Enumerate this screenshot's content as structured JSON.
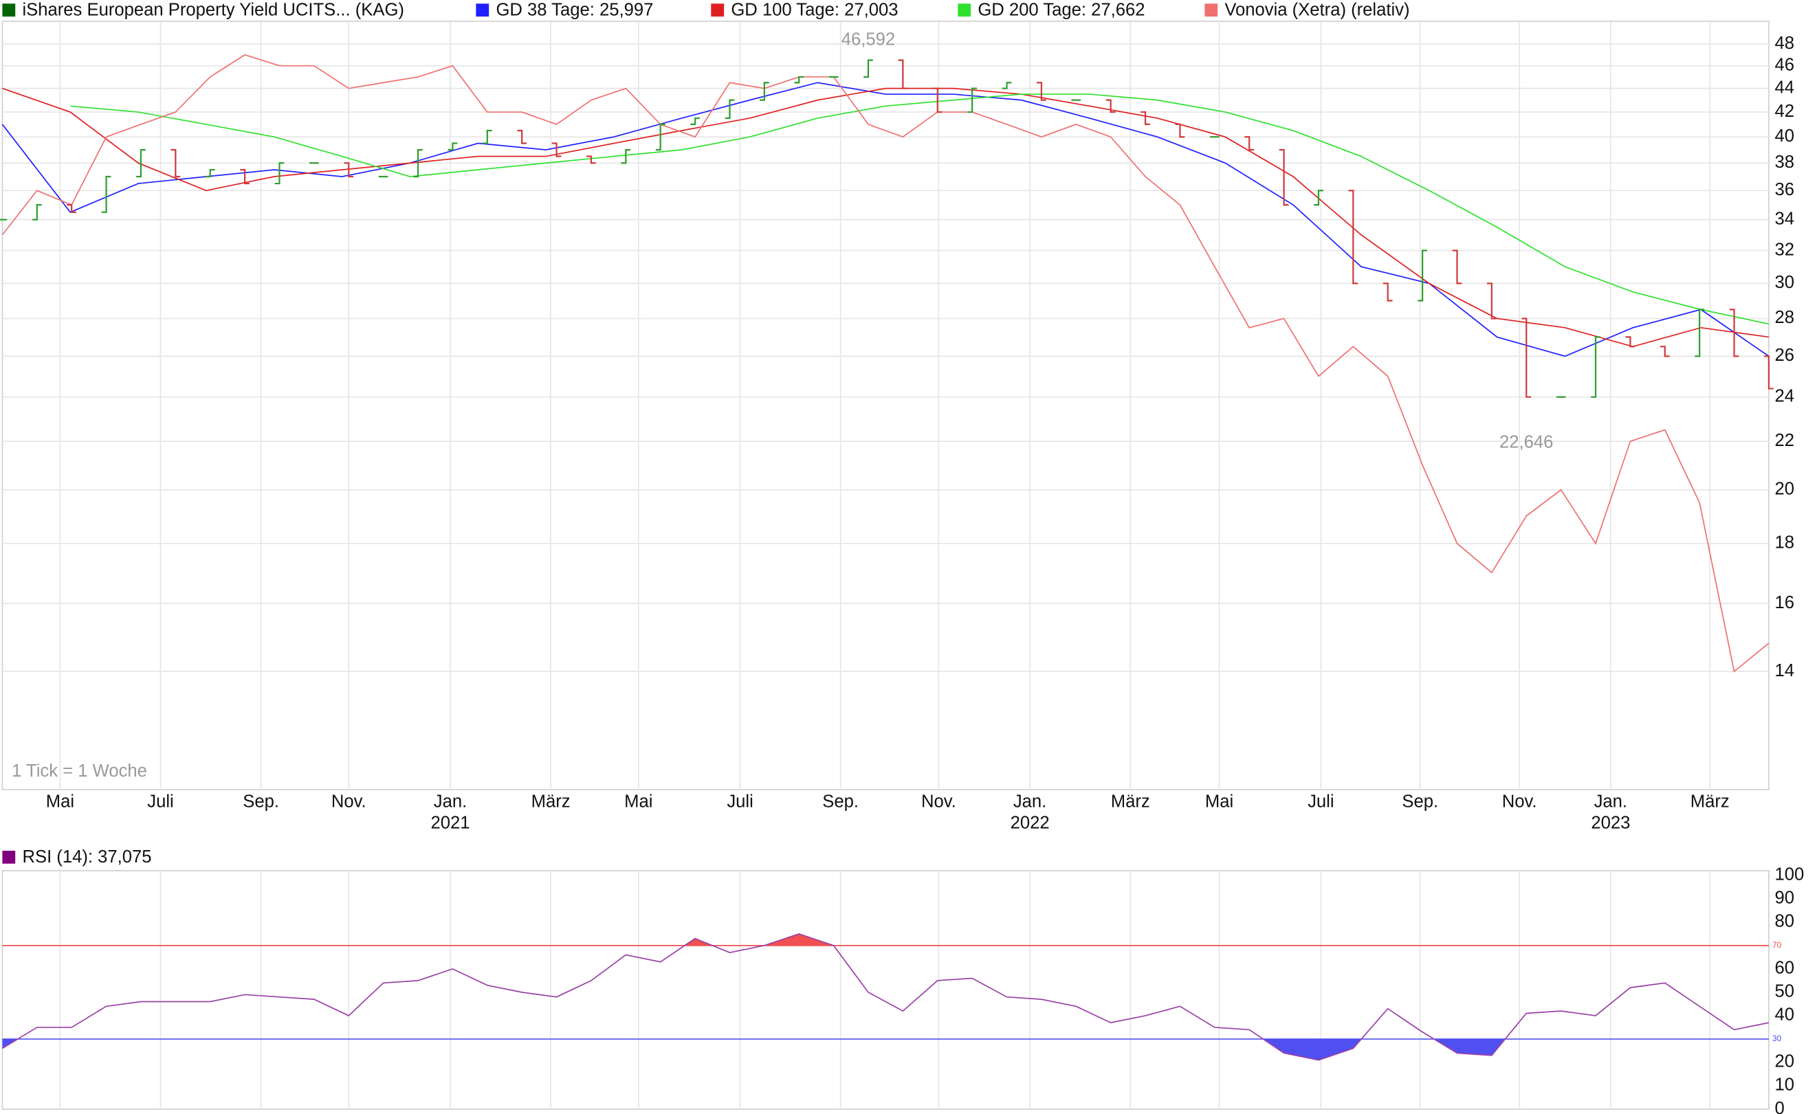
{
  "chart_data": [
    {
      "type": "ohlc",
      "note_text": "1 Tick = 1 Woche",
      "log_scale": true,
      "grid": true,
      "xlim": [
        0,
        153
      ],
      "xticks": [
        {
          "value": 5.0,
          "label": "Mai"
        },
        {
          "value": 13.7,
          "label": "Juli"
        },
        {
          "value": 22.4,
          "label": "Sep."
        },
        {
          "value": 30.0,
          "label": "Nov."
        },
        {
          "value": 38.8,
          "label": "Jan."
        },
        {
          "value": 47.5,
          "label": "März"
        },
        {
          "value": 55.1,
          "label": "Mai"
        },
        {
          "value": 63.9,
          "label": "Juli"
        },
        {
          "value": 72.6,
          "label": "Sep."
        },
        {
          "value": 81.1,
          "label": "Nov."
        },
        {
          "value": 89.0,
          "label": "Jan."
        },
        {
          "value": 97.7,
          "label": "März"
        },
        {
          "value": 105.4,
          "label": "Mai"
        },
        {
          "value": 114.2,
          "label": "Juli"
        },
        {
          "value": 122.8,
          "label": "Sep."
        },
        {
          "value": 131.4,
          "label": "Nov."
        },
        {
          "value": 139.3,
          "label": "Jan."
        },
        {
          "value": 147.9,
          "label": "März"
        }
      ],
      "years": [
        {
          "value": 38.8,
          "label": "2021"
        },
        {
          "value": 89.0,
          "label": "2022"
        },
        {
          "value": 139.3,
          "label": "2023"
        }
      ],
      "ylim": [
        11.1,
        50.2
      ],
      "yticks": [
        14,
        16,
        18,
        20,
        22,
        24,
        26,
        28,
        30,
        32,
        34,
        36,
        38,
        40,
        42,
        44,
        46,
        48
      ],
      "high": {
        "value": 46.592,
        "label": "46,592"
      },
      "low": {
        "value": 22.646,
        "label": "22,646"
      },
      "up_color": "#2e9e2e",
      "down_color": "#d03a3a",
      "series": [
        {
          "name": "iShares European Property Yield UCITS... (KAG)",
          "color": "#006400",
          "style": "ohlc",
          "values": [
            34,
            35,
            34.5,
            37,
            39,
            37,
            37.5,
            36.5,
            38,
            38,
            37,
            37,
            39,
            39.5,
            40.5,
            39.5,
            38.5,
            38,
            39,
            41,
            41.5,
            43,
            44.5,
            45,
            45,
            46.5,
            44,
            42,
            44,
            44.5,
            43,
            43,
            42,
            41,
            40,
            40,
            39,
            35,
            36,
            30,
            29,
            32,
            30,
            28,
            24,
            24,
            27,
            26.5,
            26,
            28.5,
            26,
            24.4
          ]
        },
        {
          "name": "GD 38 Tage: 25,997",
          "color": "#2020ff",
          "style": "line",
          "values": [
            41,
            34.5,
            36.5,
            37,
            37.5,
            37,
            38,
            39.5,
            39,
            40,
            41.5,
            43,
            44.5,
            43.5,
            43.5,
            43,
            41.5,
            40,
            38,
            35,
            31,
            30,
            27,
            26,
            27.5,
            28.5,
            26
          ]
        },
        {
          "name": "GD 100 Tage: 27,003",
          "color": "#e02020",
          "style": "line",
          "values": [
            44,
            42,
            38,
            36,
            37,
            37.5,
            38,
            38.5,
            38.5,
            39.5,
            40.5,
            41.5,
            43,
            44,
            44,
            43.5,
            42.5,
            41.5,
            40,
            37,
            33,
            30,
            28,
            27.5,
            26.5,
            27.5,
            27
          ]
        },
        {
          "name": "GD 200 Tage: 27,662",
          "color": "#30e030",
          "style": "line",
          "values": [
            null,
            42.5,
            42,
            41,
            40,
            38.5,
            37,
            37.5,
            38,
            38.5,
            39,
            40,
            41.5,
            42.5,
            43,
            43.5,
            43.5,
            43,
            42,
            40.5,
            38.5,
            36,
            33.5,
            31,
            29.5,
            28.5,
            27.7
          ]
        },
        {
          "name": "Vonovia (Xetra) (relativ)",
          "color": "#f07070",
          "style": "line",
          "values": [
            33,
            36,
            35,
            40,
            41,
            42,
            45,
            47,
            46,
            46,
            44,
            44.5,
            45,
            46,
            42,
            42,
            41,
            43,
            44,
            41,
            40,
            44.5,
            44,
            45,
            45,
            41,
            40,
            42,
            42,
            41,
            40,
            41,
            40,
            37,
            35,
            31,
            27.5,
            28,
            25,
            26.5,
            25,
            21,
            18,
            17,
            19,
            20,
            18,
            22,
            22.5,
            19.5,
            14,
            14.8
          ]
        }
      ]
    },
    {
      "type": "line",
      "title": "RSI (14): 37,075",
      "xlim": [
        0,
        153
      ],
      "ylim": [
        0,
        100
      ],
      "yticks": [
        0,
        10,
        20,
        40,
        50,
        60,
        80,
        90,
        100
      ],
      "overbought": 70,
      "oversold": 30,
      "color": "#800080",
      "line_color": "#9a40a8",
      "overbought_color": "#f05050",
      "oversold_color": "#5050f0",
      "values": [
        26,
        35,
        35,
        44,
        46,
        46,
        46,
        49,
        48,
        47,
        40,
        54,
        55,
        60,
        53,
        50,
        48,
        55,
        66,
        63,
        73,
        67,
        70,
        75,
        70,
        50,
        42,
        55,
        56,
        48,
        47,
        44,
        37,
        40,
        44,
        35,
        34,
        24,
        21,
        26,
        43,
        33,
        24,
        23,
        41,
        42,
        40,
        52,
        54,
        44,
        34,
        37
      ]
    }
  ]
}
